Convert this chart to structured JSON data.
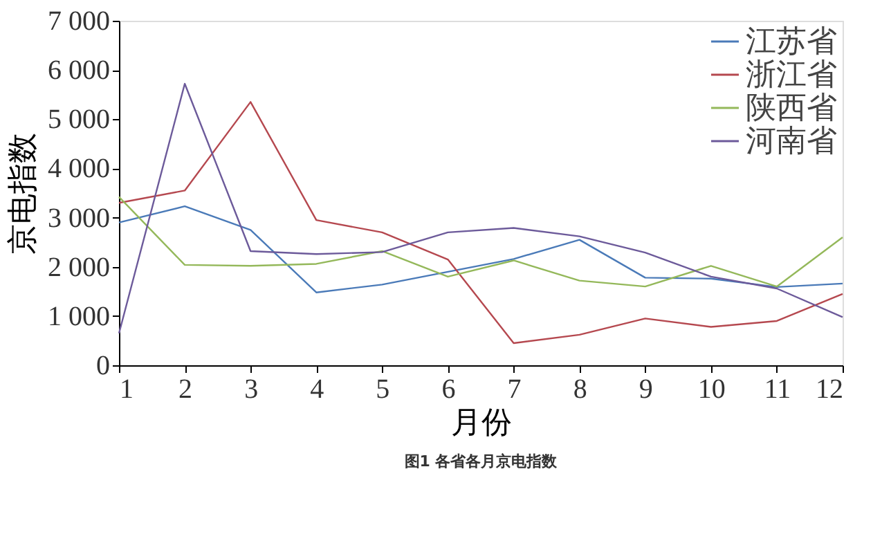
{
  "chart_data": {
    "type": "line",
    "title": "图1  各省各月京电指数",
    "xlabel": "月份",
    "ylabel": "京电指数",
    "x": [
      1,
      2,
      3,
      4,
      5,
      6,
      7,
      8,
      9,
      10,
      11,
      12
    ],
    "series": [
      {
        "name": "江苏省",
        "color": "#4a7ab8",
        "values": [
          2900,
          3230,
          2750,
          1480,
          1640,
          1900,
          2160,
          2550,
          1780,
          1760,
          1590,
          1660
        ]
      },
      {
        "name": "浙江省",
        "color": "#b5484f",
        "values": [
          3300,
          3550,
          5350,
          2950,
          2700,
          2150,
          450,
          620,
          950,
          780,
          900,
          1450
        ]
      },
      {
        "name": "陕西省",
        "color": "#94b85a",
        "values": [
          3420,
          2040,
          2020,
          2060,
          2320,
          1800,
          2130,
          1720,
          1600,
          2020,
          1600,
          2600
        ]
      },
      {
        "name": "河南省",
        "color": "#6c5a9a",
        "values": [
          650,
          5720,
          2320,
          2260,
          2300,
          2700,
          2790,
          2620,
          2290,
          1800,
          1560,
          980
        ]
      }
    ],
    "xlim": [
      1,
      12
    ],
    "xticks": [
      1,
      2,
      3,
      4,
      5,
      6,
      7,
      8,
      9,
      10,
      11,
      12
    ],
    "ylim": [
      0,
      7000
    ],
    "yticks": [
      0,
      {
        "value": 1000,
        "label": "1 000"
      },
      {
        "value": 2000,
        "label": "2 000"
      },
      {
        "value": 3000,
        "label": "3 000"
      },
      {
        "value": 4000,
        "label": "4 000"
      },
      {
        "value": 5000,
        "label": "5 000"
      },
      {
        "value": 6000,
        "label": "6 000"
      },
      {
        "value": 7000,
        "label": "7 000"
      }
    ],
    "grid": false,
    "legend": "top right",
    "marker": "none",
    "line_style": "solid"
  }
}
